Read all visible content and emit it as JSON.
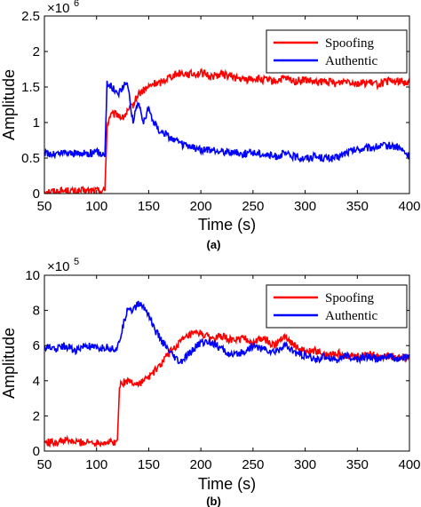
{
  "chart_data": [
    {
      "type": "line",
      "caption": "(a)",
      "xlabel": "Time (s)",
      "ylabel": "Amplitude",
      "xlim": [
        50,
        400
      ],
      "ylim": [
        0,
        2500000
      ],
      "multiplier": "×10",
      "multiplier_exp": "6",
      "xticks": [
        50,
        100,
        150,
        200,
        250,
        300,
        350,
        400
      ],
      "yticks": [
        0,
        0.5,
        1,
        1.5,
        2,
        2.5
      ],
      "yticks_scaled": 1000000,
      "grid": false,
      "legend_position": "top-right",
      "series": [
        {
          "name": "Spoofing",
          "color": "#ff0000",
          "x": [
            50,
            60,
            70,
            80,
            90,
            100,
            108,
            110,
            113,
            120,
            125,
            130,
            135,
            140,
            145,
            150,
            155,
            160,
            165,
            170,
            180,
            190,
            200,
            210,
            220,
            230,
            240,
            250,
            260,
            270,
            280,
            290,
            300,
            310,
            320,
            330,
            340,
            350,
            360,
            370,
            380,
            390,
            400
          ],
          "y": [
            40000,
            30000,
            40000,
            30000,
            40000,
            40000,
            40000,
            950000,
            1100000,
            1120000,
            1060000,
            1150000,
            1250000,
            1400000,
            1450000,
            1500000,
            1550000,
            1550000,
            1600000,
            1650000,
            1700000,
            1680000,
            1700000,
            1650000,
            1680000,
            1650000,
            1600000,
            1620000,
            1600000,
            1580000,
            1620000,
            1580000,
            1600000,
            1560000,
            1580000,
            1550000,
            1600000,
            1550000,
            1560000,
            1540000,
            1580000,
            1580000,
            1560000
          ]
        },
        {
          "name": "Authentic",
          "color": "#0000ff",
          "x": [
            50,
            60,
            70,
            80,
            90,
            100,
            108,
            110,
            115,
            120,
            125,
            130,
            135,
            140,
            145,
            150,
            155,
            160,
            165,
            170,
            180,
            190,
            200,
            210,
            220,
            230,
            240,
            250,
            260,
            270,
            280,
            290,
            300,
            310,
            320,
            330,
            340,
            350,
            360,
            370,
            380,
            390,
            400
          ],
          "y": [
            570000,
            550000,
            580000,
            560000,
            570000,
            580000,
            560000,
            1550000,
            1500000,
            1400000,
            1500000,
            1550000,
            1000000,
            1300000,
            1000000,
            1200000,
            1000000,
            900000,
            850000,
            800000,
            700000,
            650000,
            620000,
            600000,
            600000,
            580000,
            560000,
            580000,
            560000,
            520000,
            560000,
            520000,
            500000,
            520000,
            500000,
            500000,
            580000,
            620000,
            640000,
            660000,
            680000,
            650000,
            520000
          ]
        }
      ]
    },
    {
      "type": "line",
      "caption": "(b)",
      "xlabel": "Time (s)",
      "ylabel": "Amplitude",
      "xlim": [
        50,
        400
      ],
      "ylim": [
        0,
        1000000
      ],
      "multiplier": "×10",
      "multiplier_exp": "5",
      "xticks": [
        50,
        100,
        150,
        200,
        250,
        300,
        350,
        400
      ],
      "yticks": [
        0,
        2,
        4,
        6,
        8,
        10
      ],
      "yticks_scaled": 100000,
      "grid": false,
      "legend_position": "top-right",
      "series": [
        {
          "name": "Spoofing",
          "color": "#ff0000",
          "x": [
            50,
            60,
            70,
            80,
            90,
            100,
            110,
            120,
            122,
            130,
            140,
            150,
            160,
            170,
            180,
            190,
            200,
            210,
            220,
            230,
            240,
            250,
            260,
            270,
            280,
            290,
            300,
            310,
            320,
            330,
            340,
            350,
            360,
            370,
            380,
            390,
            400
          ],
          "y": [
            50000,
            50000,
            60000,
            50000,
            50000,
            50000,
            50000,
            50000,
            380000,
            400000,
            380000,
            420000,
            480000,
            560000,
            620000,
            660000,
            670000,
            640000,
            650000,
            630000,
            640000,
            620000,
            640000,
            600000,
            660000,
            600000,
            560000,
            570000,
            540000,
            560000,
            540000,
            540000,
            550000,
            540000,
            540000,
            530000,
            540000
          ]
        },
        {
          "name": "Authentic",
          "color": "#0000ff",
          "x": [
            50,
            60,
            70,
            80,
            90,
            100,
            110,
            120,
            125,
            130,
            135,
            140,
            145,
            150,
            155,
            160,
            170,
            180,
            190,
            200,
            210,
            220,
            230,
            240,
            250,
            260,
            270,
            280,
            290,
            300,
            310,
            320,
            330,
            340,
            350,
            360,
            370,
            380,
            390,
            400
          ],
          "y": [
            590000,
            580000,
            600000,
            570000,
            600000,
            580000,
            590000,
            580000,
            700000,
            820000,
            800000,
            840000,
            820000,
            780000,
            700000,
            650000,
            560000,
            500000,
            560000,
            620000,
            620000,
            580000,
            540000,
            560000,
            600000,
            580000,
            560000,
            600000,
            560000,
            540000,
            520000,
            540000,
            520000,
            540000,
            520000,
            540000,
            520000,
            540000,
            520000,
            540000
          ]
        }
      ]
    }
  ]
}
